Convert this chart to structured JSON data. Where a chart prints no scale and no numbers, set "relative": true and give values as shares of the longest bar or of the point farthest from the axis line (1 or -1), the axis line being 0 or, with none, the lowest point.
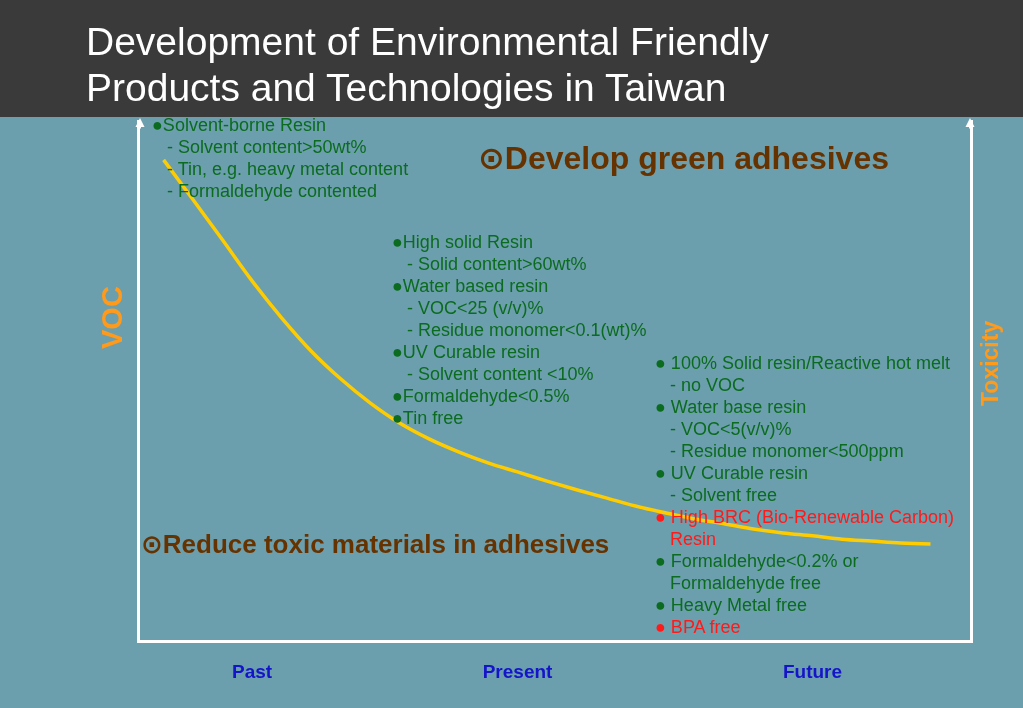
{
  "chart_data": {
    "type": "line",
    "title": "Development of Environmental Friendly Products and Technologies in Taiwan",
    "ylabel": "VOC",
    "y2label": "Toxicity",
    "relative": true,
    "categories": [
      null,
      null,
      null,
      "Past",
      null,
      null,
      null,
      null,
      null,
      null,
      null,
      null,
      "Present",
      null,
      null,
      null,
      null,
      null,
      null,
      null,
      null,
      null,
      "Future",
      null,
      null,
      null,
      null
    ],
    "series": [
      {
        "color": "#ffcc00",
        "values": [
          1,
          0.917,
          0.833,
          0.748,
          0.671,
          0.602,
          0.544,
          0.494,
          0.452,
          0.419,
          0.392,
          0.369,
          0.35,
          0.331,
          0.313,
          0.296,
          0.279,
          0.265,
          0.252,
          0.242,
          0.231,
          0.223,
          0.217,
          0.21,
          0.206,
          0.202,
          0.2
        ]
      }
    ],
    "line_style": "solid",
    "annotations": [
      "⊙Develop green adhesives",
      "⊙Reduce toxic materials in adhesives",
      "●Solvent-borne Resin\n   - Solvent content>50wt%\n   - Tin, e.g. heavy metal content\n   - Formaldehyde contented",
      "●High solid Resin\n   - Solid content>60wt%\n●Water based resin\n   - VOC<25 (v/v)%\n   - Residue monomer<0.1(wt)%\n●UV Curable resin\n   - Solvent content <10%\n●Formaldehyde<0.5%\n●Tin free",
      "● 100% Solid resin/Reactive hot melt\n   - no VOC\n● Water base resin\n   - VOC<5(v/v)%\n   - Residue monomer<500ppm\n● UV Curable resin\n   - Solvent free",
      "● High BRC (Bio-Renewable Carbon)\n   Resin",
      "● Formaldehyde<0.2% or\n   Formaldehyde free\n● Heavy Metal free",
      "● BPA free"
    ]
  }
}
